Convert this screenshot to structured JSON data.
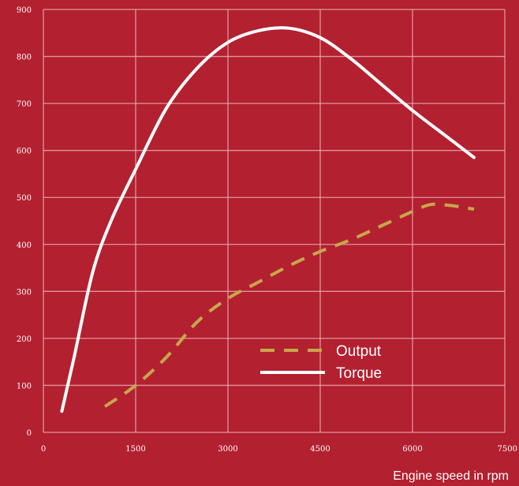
{
  "colors": {
    "background": "#b32030",
    "grid": "#e8b4b8",
    "output": "#c8a64a",
    "torque": "#ffffff"
  },
  "chart_data": {
    "type": "line",
    "title": "",
    "xlabel": "Engine speed in rpm",
    "ylabel": "",
    "xlim": [
      0,
      7500
    ],
    "ylim": [
      0,
      900
    ],
    "xticks": [
      0,
      1500,
      3000,
      4500,
      6000,
      7500
    ],
    "xtick_labels": [
      "0",
      "1500",
      "3000",
      "4500",
      "6000",
      "7500"
    ],
    "yticks": [
      0,
      100,
      200,
      300,
      400,
      500,
      600,
      700,
      800,
      900
    ],
    "ytick_labels": [
      "0",
      "100",
      "200",
      "300",
      "400",
      "500",
      "600",
      "700",
      "800",
      "900"
    ],
    "grid": true,
    "legend_position": "lower-right",
    "series": [
      {
        "name": "Output",
        "style": "dashed",
        "color": "#c8a64a",
        "x": [
          1000,
          1500,
          2000,
          2500,
          3000,
          3500,
          4000,
          4500,
          5000,
          5500,
          6000,
          6300,
          6600,
          7000
        ],
        "y": [
          55,
          100,
          160,
          235,
          285,
          320,
          355,
          385,
          410,
          440,
          470,
          485,
          483,
          475
        ]
      },
      {
        "name": "Torque",
        "style": "solid",
        "color": "#ffffff",
        "x": [
          300,
          500,
          800,
          1100,
          1500,
          2000,
          2500,
          3000,
          3500,
          4000,
          4500,
          5000,
          5500,
          6000,
          6500,
          7000
        ],
        "y": [
          45,
          160,
          340,
          450,
          560,
          690,
          775,
          830,
          855,
          860,
          840,
          795,
          740,
          685,
          635,
          585
        ]
      }
    ]
  }
}
